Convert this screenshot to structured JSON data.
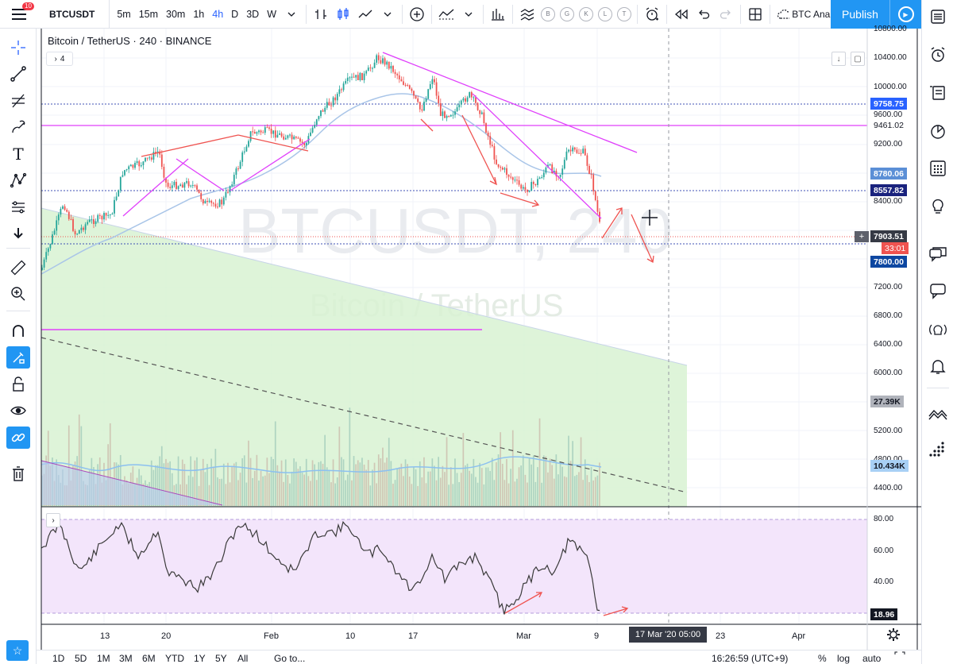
{
  "toolbar": {
    "notification_count": "10",
    "symbol": "BTCUSDT",
    "intervals": [
      "5m",
      "15m",
      "30m",
      "1h",
      "4h",
      "D",
      "3D",
      "W"
    ],
    "active_interval": "4h",
    "alert_letters": [
      "B",
      "G",
      "K",
      "L",
      "T"
    ],
    "layout_name": "BTC Anal",
    "publish_label": "Publish"
  },
  "legend": {
    "title": "Bitcoin / TetherUS · 240 · BINANCE",
    "indicator_count": "4"
  },
  "watermark": {
    "symbol": "BTCUSDT, 240",
    "name": "Bitcoin / TetherUS"
  },
  "price_scale": {
    "ticks": [
      "10800.00",
      "10400.00",
      "10000.00",
      "9600.00",
      "9200.00",
      "8400.00",
      "7200.00",
      "6800.00",
      "6400.00",
      "6000.00",
      "5200.00",
      "4800.00",
      "4400.00"
    ],
    "labels": {
      "hline_top": "9758.75",
      "hline_pink": "9461.02",
      "ma_value": "8780.06",
      "hline_mid": "8557.82",
      "last_price": "7903.51",
      "countdown": "33:01",
      "cursor_price": "7800.00",
      "volume_high": "27.39K",
      "volume_ma": "10.434K"
    }
  },
  "rsi": {
    "ticks": [
      "80.00",
      "60.00",
      "40.00"
    ],
    "value": "18.96"
  },
  "time_axis": {
    "ticks": [
      "13",
      "20",
      "Feb",
      "10",
      "17",
      "Mar",
      "9",
      "23",
      "Apr"
    ],
    "cursor_time": "17 Mar '20  05:00"
  },
  "bottombar": {
    "ranges": [
      "1D",
      "5D",
      "1M",
      "3M",
      "6M",
      "YTD",
      "1Y",
      "5Y",
      "All"
    ],
    "goto_label": "Go to...",
    "clock": "16:26:59 (UTC+9)",
    "percent_label": "%",
    "log_label": "log",
    "auto_label": "auto"
  },
  "colors": {
    "up": "#26a69a",
    "down": "#ef5350",
    "accent": "#2196f3",
    "trendline_pink": "#e040fb",
    "arrow_red": "#ef5350",
    "hline_blue": "#3f51b5"
  }
}
